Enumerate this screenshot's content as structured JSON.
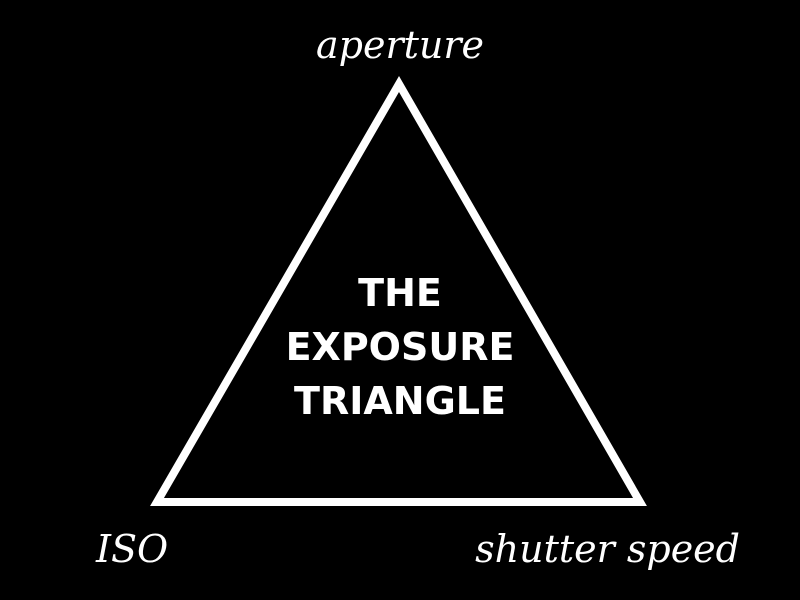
{
  "diagram": {
    "vertices": {
      "top": "aperture",
      "bottom_left": "ISO",
      "bottom_right": "shutter speed"
    },
    "title_lines": [
      "THE",
      "EXPOSURE",
      "TRIANGLE"
    ]
  },
  "colors": {
    "background": "#000000",
    "foreground": "#ffffff"
  }
}
